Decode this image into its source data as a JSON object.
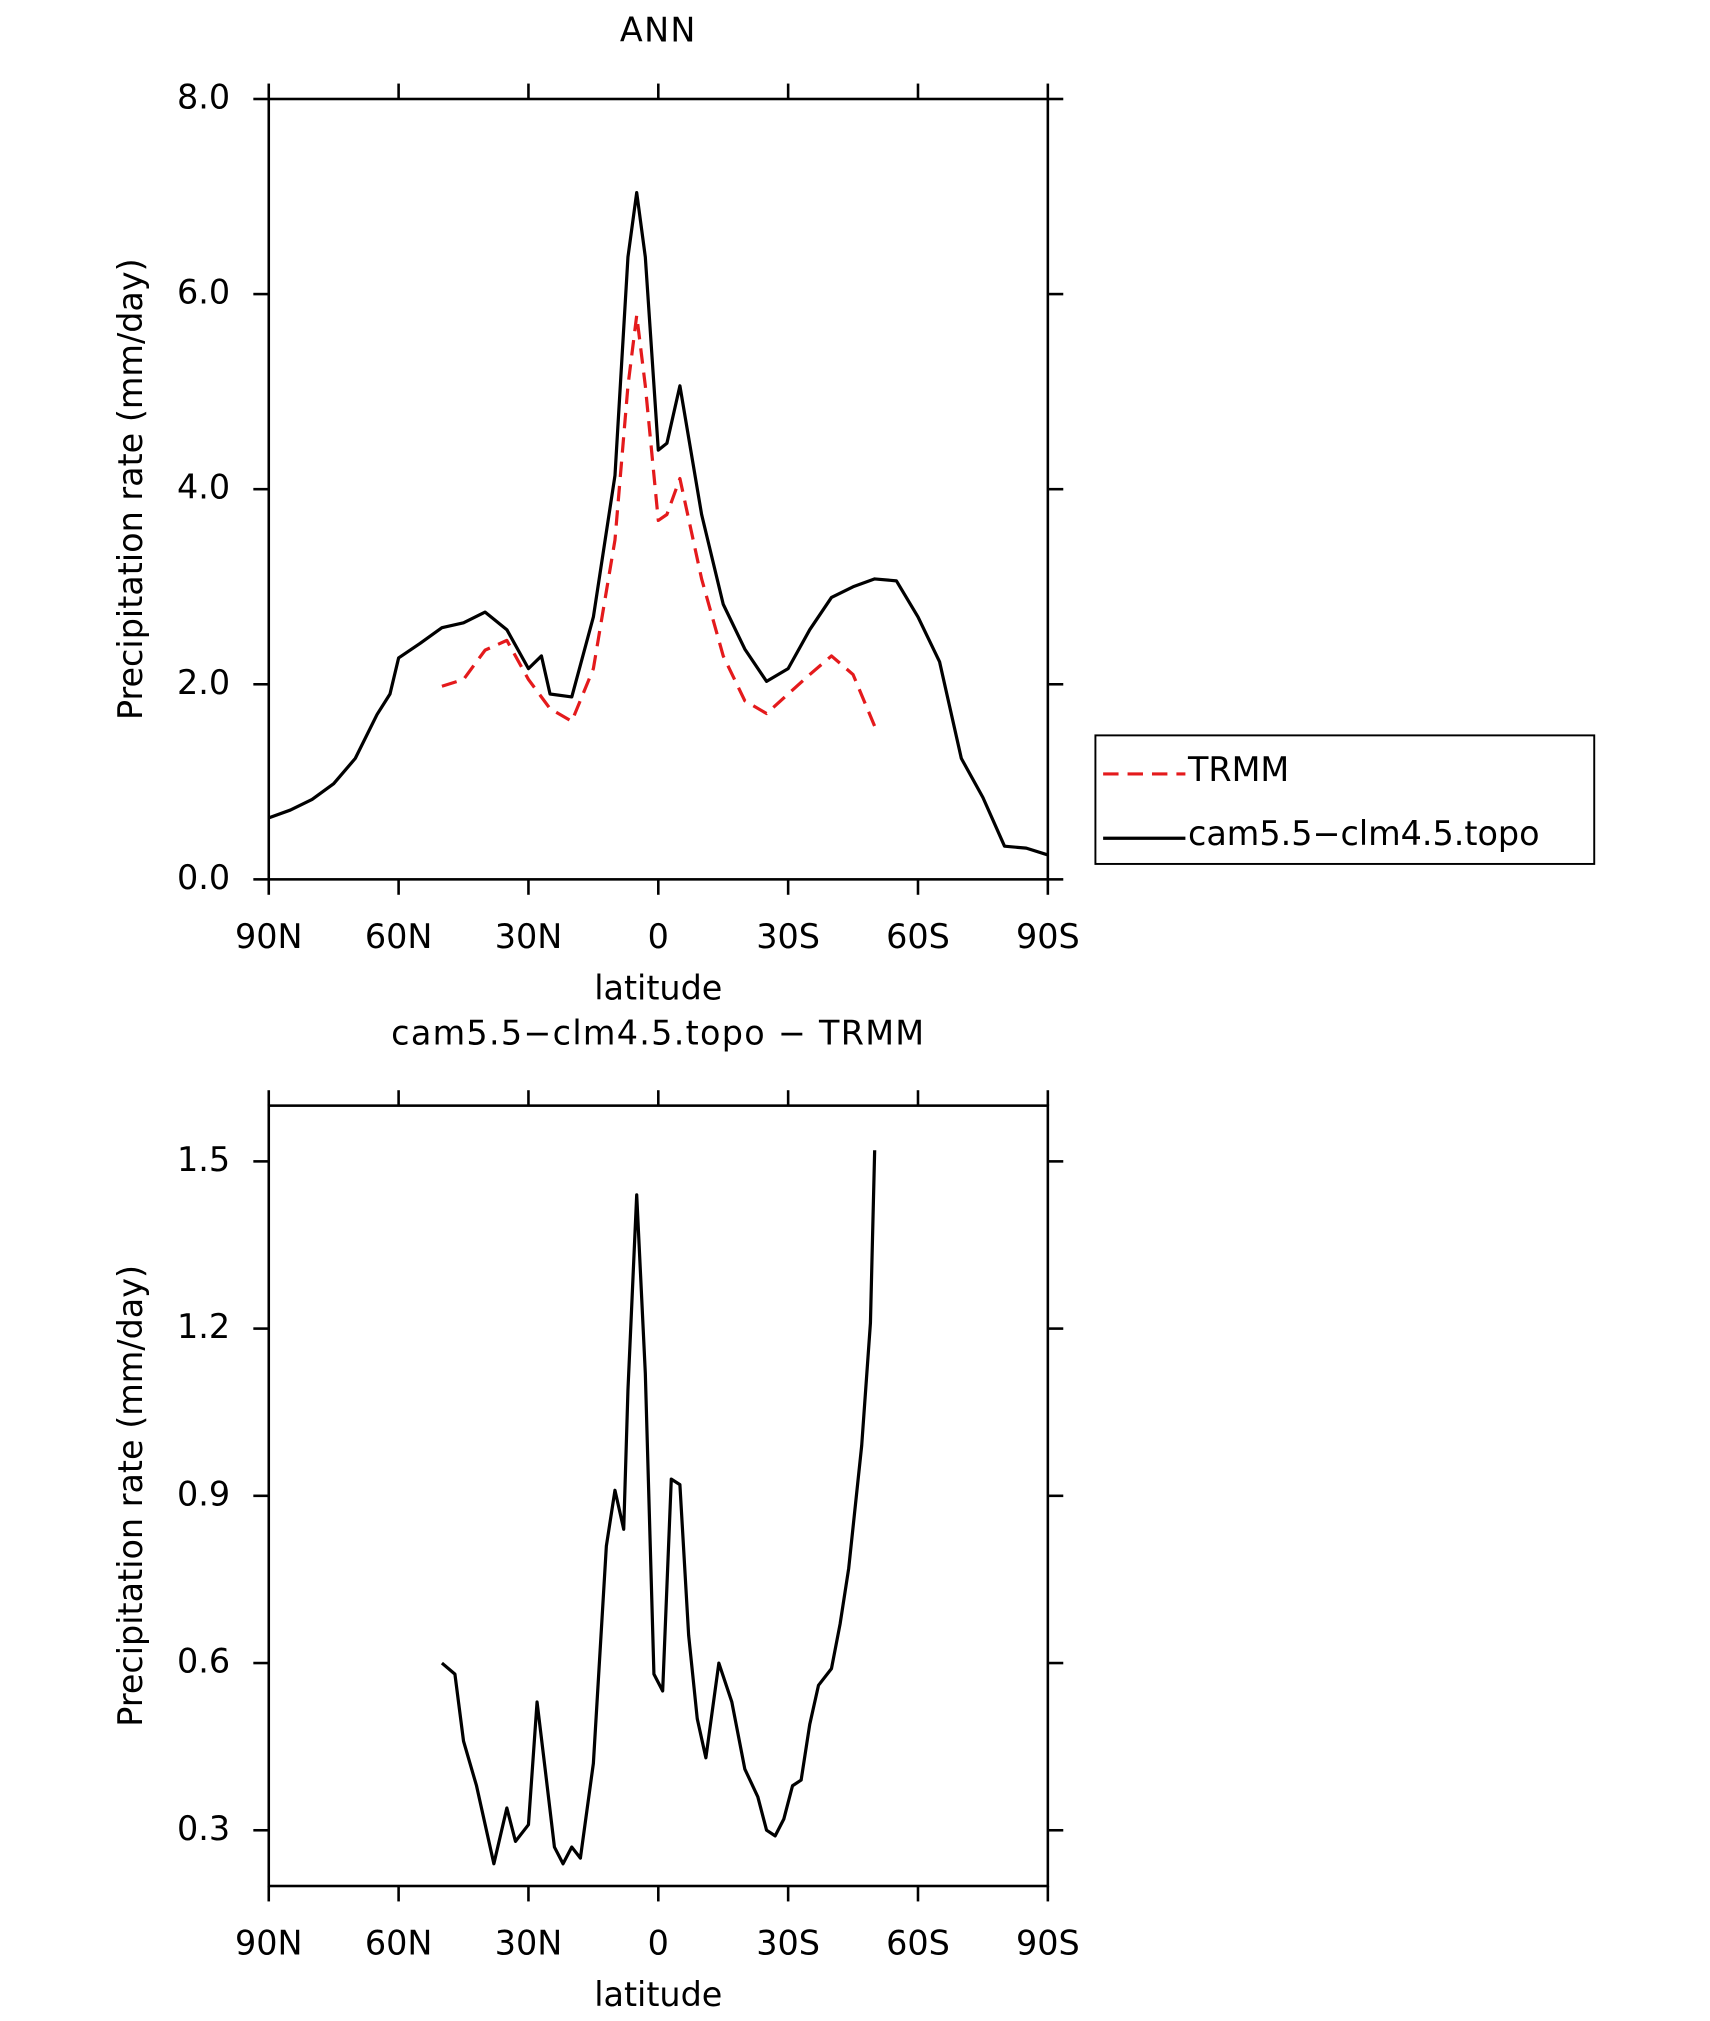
{
  "chart_data": [
    {
      "type": "line",
      "title": "ANN",
      "ylabel": "Precipitation rate (mm/day)",
      "xlabel": "latitude",
      "xlim": [
        90,
        -90
      ],
      "xticks": [
        {
          "value": 90,
          "label": "90N"
        },
        {
          "value": 60,
          "label": "60N"
        },
        {
          "value": 30,
          "label": "30N"
        },
        0,
        {
          "value": -30,
          "label": "30S"
        },
        {
          "value": -60,
          "label": "60S"
        },
        {
          "value": -90,
          "label": "90S"
        }
      ],
      "ylim": [
        0,
        8
      ],
      "yticks": [
        {
          "value": 0,
          "label": "0.0"
        },
        {
          "value": 2,
          "label": "2.0"
        },
        {
          "value": 4,
          "label": "4.0"
        },
        {
          "value": 6,
          "label": "6.0"
        },
        {
          "value": 8,
          "label": "8.0"
        }
      ],
      "legend": "right",
      "series": [
        {
          "name": "TRMM",
          "color": "#e41a1c",
          "dash": true,
          "x": [
            50,
            45,
            40,
            35,
            30,
            25,
            20,
            15,
            10,
            7,
            5,
            3,
            0,
            -2,
            -5,
            -10,
            -15,
            -20,
            -25,
            -30,
            -35,
            -40,
            -45,
            -50
          ],
          "values": [
            1.98,
            2.05,
            2.35,
            2.45,
            2.05,
            1.75,
            1.62,
            2.16,
            3.48,
            5.06,
            5.78,
            5.06,
            3.68,
            3.74,
            4.11,
            3.08,
            2.29,
            1.83,
            1.7,
            1.9,
            2.1,
            2.29,
            2.1,
            1.57
          ]
        },
        {
          "name": "cam5.5−clm4.5.topo",
          "color": "#000000",
          "dash": false,
          "x": [
            90,
            85,
            80,
            75,
            70,
            65,
            62,
            60,
            55,
            50,
            45,
            40,
            35,
            30,
            27,
            25,
            20,
            15,
            10,
            7,
            5,
            3,
            0,
            -2,
            -5,
            -10,
            -15,
            -20,
            -25,
            -30,
            -35,
            -40,
            -45,
            -50,
            -55,
            -60,
            -65,
            -70,
            -75,
            -80,
            -85,
            -90
          ],
          "values": [
            0.63,
            0.71,
            0.82,
            0.98,
            1.24,
            1.69,
            1.9,
            2.27,
            2.42,
            2.58,
            2.63,
            2.74,
            2.56,
            2.16,
            2.29,
            1.9,
            1.87,
            2.69,
            4.14,
            6.38,
            7.04,
            6.38,
            4.4,
            4.47,
            5.06,
            3.74,
            2.82,
            2.36,
            2.03,
            2.16,
            2.56,
            2.89,
            3.0,
            3.08,
            3.06,
            2.69,
            2.23,
            1.24,
            0.84,
            0.34,
            0.32,
            0.25
          ]
        }
      ]
    },
    {
      "type": "line",
      "title": "cam5.5−clm4.5.topo − TRMM",
      "ylabel": "Precipitation rate (mm/day)",
      "xlabel": "latitude",
      "xlim": [
        90,
        -90
      ],
      "xticks": [
        {
          "value": 90,
          "label": "90N"
        },
        {
          "value": 60,
          "label": "60N"
        },
        {
          "value": 30,
          "label": "30N"
        },
        0,
        {
          "value": -30,
          "label": "30S"
        },
        {
          "value": -60,
          "label": "60S"
        },
        {
          "value": -90,
          "label": "90S"
        }
      ],
      "ylim": [
        0.2,
        1.6
      ],
      "yticks": [
        0.3,
        0.6,
        0.9,
        1.2,
        1.5
      ],
      "series": [
        {
          "color": "#000000",
          "dash": false,
          "x": [
            50,
            47,
            45,
            42,
            38,
            35,
            33,
            30,
            28,
            26,
            24,
            22,
            20,
            18,
            15,
            12,
            10,
            8,
            7,
            5,
            3,
            1,
            -1,
            -3,
            -5,
            -7,
            -9,
            -11,
            -14,
            -17,
            -20,
            -23,
            -25,
            -27,
            -29,
            -31,
            -33,
            -35,
            -37,
            -40,
            -42,
            -44,
            -47,
            -49,
            -50
          ],
          "values": [
            0.6,
            0.58,
            0.46,
            0.38,
            0.24,
            0.34,
            0.28,
            0.31,
            0.53,
            0.4,
            0.27,
            0.24,
            0.27,
            0.25,
            0.42,
            0.81,
            0.91,
            0.84,
            1.09,
            1.44,
            1.12,
            0.58,
            0.55,
            0.93,
            0.92,
            0.65,
            0.5,
            0.43,
            0.6,
            0.53,
            0.41,
            0.36,
            0.3,
            0.29,
            0.32,
            0.38,
            0.39,
            0.49,
            0.56,
            0.59,
            0.67,
            0.77,
            0.99,
            1.21,
            1.52
          ]
        }
      ]
    }
  ]
}
